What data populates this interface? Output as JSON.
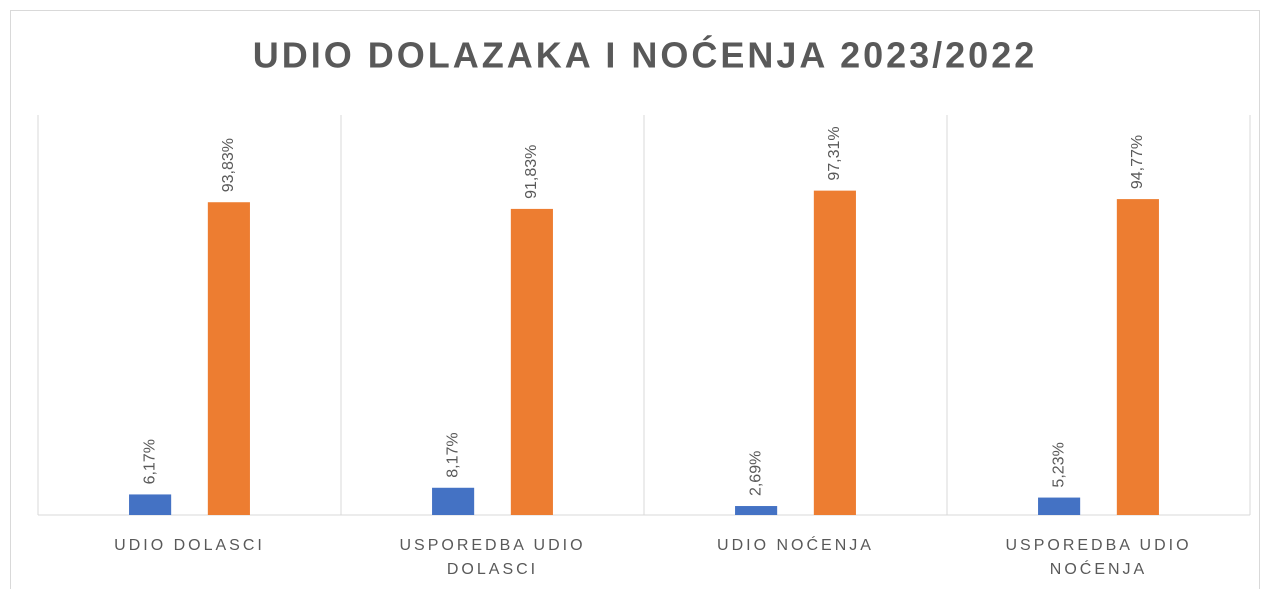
{
  "chart_data": {
    "type": "bar",
    "title": "UDIO DOLAZAKA I NOĆENJA 2023/2022",
    "categories": [
      "UDIO DOLASCI",
      "USPOREDBA UDIO DOLASCI",
      "UDIO NOĆENJA",
      "USPOREDBA UDIO NOĆENJA"
    ],
    "series": [
      {
        "color": "#4472c4",
        "values": [
          6.17,
          8.17,
          2.69,
          5.23
        ],
        "value_labels": [
          "6,17%",
          "8,17%",
          "2,69%",
          "5,23%"
        ]
      },
      {
        "color": "#ed7d31",
        "values": [
          93.83,
          91.83,
          97.31,
          94.77
        ],
        "value_labels": [
          "93,83%",
          "91,83%",
          "97,31%",
          "94,77%"
        ]
      }
    ],
    "ylim": [
      0,
      120
    ],
    "category_separators": true
  }
}
